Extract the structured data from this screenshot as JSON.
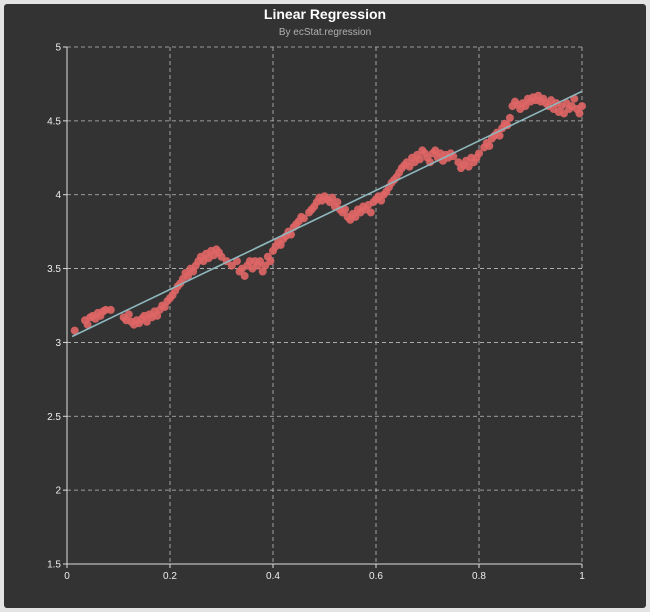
{
  "chart_data": {
    "type": "scatter",
    "title": "Linear Regression",
    "subtitle": "By ecStat.regression",
    "xlabel": "",
    "ylabel": "",
    "xlim": [
      0,
      1
    ],
    "ylim": [
      1.5,
      5
    ],
    "x_ticks": [
      "0",
      "0.2",
      "0.4",
      "0.6",
      "0.8",
      "1"
    ],
    "y_ticks": [
      "1.5",
      "2",
      "2.5",
      "3",
      "3.5",
      "4",
      "4.5",
      "5"
    ],
    "grid": true,
    "legend": "none",
    "colors": {
      "background": "#333333",
      "points": "#e06666",
      "regression_line": "#8fb8be",
      "grid": "#bdbdbd",
      "axis": "#dddddd",
      "text": "#eeeeee"
    },
    "regression_line": {
      "x": [
        0.01,
        1.0
      ],
      "y": [
        3.04,
        4.7
      ]
    },
    "points": [
      [
        0.015,
        3.08
      ],
      [
        0.035,
        3.15
      ],
      [
        0.04,
        3.12
      ],
      [
        0.045,
        3.17
      ],
      [
        0.05,
        3.18
      ],
      [
        0.055,
        3.16
      ],
      [
        0.06,
        3.2
      ],
      [
        0.065,
        3.18
      ],
      [
        0.07,
        3.21
      ],
      [
        0.075,
        3.22
      ],
      [
        0.085,
        3.22
      ],
      [
        0.11,
        3.17
      ],
      [
        0.115,
        3.15
      ],
      [
        0.12,
        3.19
      ],
      [
        0.125,
        3.14
      ],
      [
        0.13,
        3.12
      ],
      [
        0.135,
        3.15
      ],
      [
        0.14,
        3.13
      ],
      [
        0.145,
        3.16
      ],
      [
        0.15,
        3.18
      ],
      [
        0.155,
        3.14
      ],
      [
        0.16,
        3.19
      ],
      [
        0.165,
        3.17
      ],
      [
        0.17,
        3.21
      ],
      [
        0.175,
        3.18
      ],
      [
        0.18,
        3.22
      ],
      [
        0.185,
        3.25
      ],
      [
        0.19,
        3.24
      ],
      [
        0.195,
        3.28
      ],
      [
        0.2,
        3.3
      ],
      [
        0.205,
        3.32
      ],
      [
        0.21,
        3.35
      ],
      [
        0.215,
        3.38
      ],
      [
        0.22,
        3.4
      ],
      [
        0.225,
        3.43
      ],
      [
        0.23,
        3.47
      ],
      [
        0.235,
        3.45
      ],
      [
        0.24,
        3.5
      ],
      [
        0.245,
        3.48
      ],
      [
        0.25,
        3.52
      ],
      [
        0.255,
        3.55
      ],
      [
        0.26,
        3.58
      ],
      [
        0.265,
        3.55
      ],
      [
        0.27,
        3.6
      ],
      [
        0.275,
        3.57
      ],
      [
        0.28,
        3.62
      ],
      [
        0.285,
        3.59
      ],
      [
        0.29,
        3.63
      ],
      [
        0.295,
        3.61
      ],
      [
        0.3,
        3.58
      ],
      [
        0.31,
        3.55
      ],
      [
        0.32,
        3.52
      ],
      [
        0.33,
        3.55
      ],
      [
        0.335,
        3.48
      ],
      [
        0.34,
        3.5
      ],
      [
        0.345,
        3.45
      ],
      [
        0.35,
        3.52
      ],
      [
        0.355,
        3.55
      ],
      [
        0.36,
        3.5
      ],
      [
        0.365,
        3.55
      ],
      [
        0.37,
        3.52
      ],
      [
        0.375,
        3.55
      ],
      [
        0.38,
        3.48
      ],
      [
        0.385,
        3.52
      ],
      [
        0.39,
        3.58
      ],
      [
        0.395,
        3.55
      ],
      [
        0.4,
        3.62
      ],
      [
        0.405,
        3.65
      ],
      [
        0.41,
        3.68
      ],
      [
        0.415,
        3.66
      ],
      [
        0.42,
        3.7
      ],
      [
        0.425,
        3.72
      ],
      [
        0.43,
        3.75
      ],
      [
        0.435,
        3.73
      ],
      [
        0.44,
        3.78
      ],
      [
        0.445,
        3.8
      ],
      [
        0.45,
        3.82
      ],
      [
        0.455,
        3.85
      ],
      [
        0.46,
        3.84
      ],
      [
        0.47,
        3.88
      ],
      [
        0.475,
        3.9
      ],
      [
        0.48,
        3.92
      ],
      [
        0.485,
        3.95
      ],
      [
        0.49,
        3.98
      ],
      [
        0.495,
        3.96
      ],
      [
        0.5,
        3.99
      ],
      [
        0.505,
        3.97
      ],
      [
        0.51,
        3.95
      ],
      [
        0.515,
        3.98
      ],
      [
        0.52,
        3.92
      ],
      [
        0.525,
        3.95
      ],
      [
        0.53,
        3.9
      ],
      [
        0.535,
        3.88
      ],
      [
        0.54,
        3.9
      ],
      [
        0.545,
        3.85
      ],
      [
        0.55,
        3.83
      ],
      [
        0.555,
        3.87
      ],
      [
        0.56,
        3.85
      ],
      [
        0.565,
        3.9
      ],
      [
        0.57,
        3.88
      ],
      [
        0.575,
        3.92
      ],
      [
        0.58,
        3.9
      ],
      [
        0.585,
        3.93
      ],
      [
        0.59,
        3.88
      ],
      [
        0.595,
        3.95
      ],
      [
        0.6,
        3.97
      ],
      [
        0.605,
        3.99
      ],
      [
        0.61,
        3.96
      ],
      [
        0.615,
        4.0
      ],
      [
        0.62,
        4.02
      ],
      [
        0.625,
        4.05
      ],
      [
        0.63,
        4.08
      ],
      [
        0.635,
        4.1
      ],
      [
        0.64,
        4.12
      ],
      [
        0.645,
        4.15
      ],
      [
        0.65,
        4.18
      ],
      [
        0.655,
        4.2
      ],
      [
        0.66,
        4.22
      ],
      [
        0.665,
        4.19
      ],
      [
        0.67,
        4.25
      ],
      [
        0.675,
        4.22
      ],
      [
        0.68,
        4.27
      ],
      [
        0.685,
        4.24
      ],
      [
        0.69,
        4.3
      ],
      [
        0.695,
        4.28
      ],
      [
        0.7,
        4.25
      ],
      [
        0.705,
        4.22
      ],
      [
        0.71,
        4.28
      ],
      [
        0.715,
        4.3
      ],
      [
        0.72,
        4.25
      ],
      [
        0.725,
        4.28
      ],
      [
        0.73,
        4.23
      ],
      [
        0.735,
        4.27
      ],
      [
        0.74,
        4.25
      ],
      [
        0.745,
        4.28
      ],
      [
        0.75,
        4.26
      ],
      [
        0.76,
        4.22
      ],
      [
        0.765,
        4.18
      ],
      [
        0.77,
        4.2
      ],
      [
        0.775,
        4.23
      ],
      [
        0.78,
        4.19
      ],
      [
        0.785,
        4.25
      ],
      [
        0.79,
        4.22
      ],
      [
        0.795,
        4.25
      ],
      [
        0.8,
        4.28
      ],
      [
        0.81,
        4.32
      ],
      [
        0.815,
        4.35
      ],
      [
        0.82,
        4.33
      ],
      [
        0.825,
        4.38
      ],
      [
        0.83,
        4.4
      ],
      [
        0.835,
        4.42
      ],
      [
        0.84,
        4.4
      ],
      [
        0.845,
        4.45
      ],
      [
        0.85,
        4.48
      ],
      [
        0.855,
        4.47
      ],
      [
        0.86,
        4.52
      ],
      [
        0.865,
        4.6
      ],
      [
        0.87,
        4.63
      ],
      [
        0.875,
        4.61
      ],
      [
        0.88,
        4.58
      ],
      [
        0.885,
        4.62
      ],
      [
        0.89,
        4.6
      ],
      [
        0.895,
        4.65
      ],
      [
        0.9,
        4.63
      ],
      [
        0.905,
        4.66
      ],
      [
        0.91,
        4.64
      ],
      [
        0.915,
        4.67
      ],
      [
        0.92,
        4.63
      ],
      [
        0.925,
        4.65
      ],
      [
        0.93,
        4.62
      ],
      [
        0.935,
        4.6
      ],
      [
        0.94,
        4.64
      ],
      [
        0.945,
        4.58
      ],
      [
        0.95,
        4.62
      ],
      [
        0.955,
        4.56
      ],
      [
        0.96,
        4.6
      ],
      [
        0.965,
        4.55
      ],
      [
        0.97,
        4.62
      ],
      [
        0.975,
        4.58
      ],
      [
        0.98,
        4.6
      ],
      [
        0.985,
        4.65
      ],
      [
        0.99,
        4.58
      ],
      [
        0.995,
        4.55
      ],
      [
        1.0,
        4.6
      ]
    ]
  }
}
